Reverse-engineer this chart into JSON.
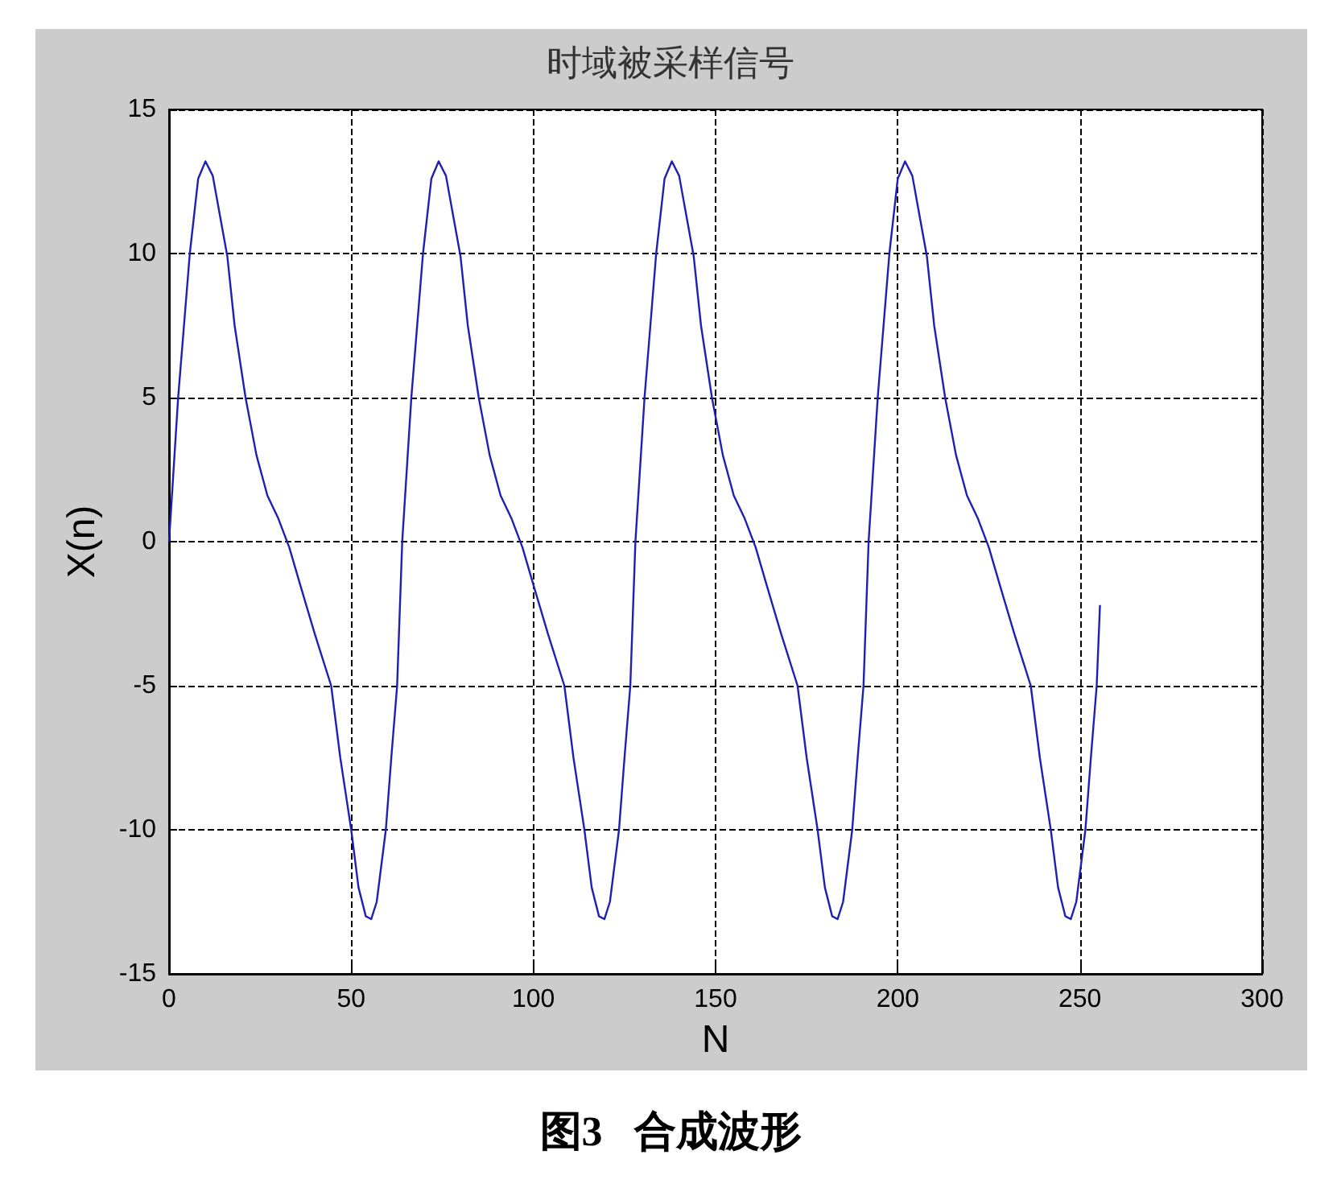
{
  "chart_data": {
    "type": "line",
    "title": "时域被采样信号",
    "xlabel": "N",
    "ylabel": "X(n)",
    "annotations": [
      "图3   合成波形"
    ],
    "x": [
      0,
      2.5,
      5.7,
      8,
      10,
      12,
      14,
      16,
      18,
      21,
      24,
      27,
      30,
      33,
      36,
      40,
      44.5,
      47,
      50,
      52,
      54,
      55.5,
      57,
      59.5,
      61,
      62.6,
      64,
      66.5,
      69.7,
      72,
      74,
      76,
      78,
      80,
      82,
      85,
      88,
      91,
      94,
      97,
      100,
      104,
      108.5,
      111,
      114,
      116,
      118,
      119.5,
      121,
      123.5,
      125,
      126.6,
      128,
      130.5,
      133.7,
      136,
      138,
      140,
      142,
      144,
      146,
      149,
      152,
      155,
      158,
      161,
      164,
      168,
      172.5,
      175,
      178,
      180,
      182,
      183.5,
      185,
      187.5,
      189,
      190.6,
      192,
      194.5,
      197.7,
      200,
      202,
      204,
      206,
      208,
      210,
      213,
      216,
      219,
      222,
      225,
      228,
      232,
      236.5,
      239,
      242,
      244,
      246,
      247.5,
      249,
      251.5,
      253,
      254.6,
      255.5
    ],
    "series": [
      {
        "color": "#1f1fb4",
        "values": [
          0,
          5,
          10,
          12.6,
          13.2,
          12.7,
          11.3,
          9.9,
          7.5,
          5,
          3,
          1.6,
          0.8,
          -0.2,
          -1.5,
          -3.2,
          -5,
          -7.5,
          -10,
          -12,
          -13,
          -13.1,
          -12.5,
          -10,
          -7.5,
          -5,
          0,
          5,
          10,
          12.6,
          13.2,
          12.7,
          11.3,
          9.9,
          7.5,
          5,
          3,
          1.6,
          0.8,
          -0.2,
          -1.5,
          -3.2,
          -5,
          -7.5,
          -10,
          -12,
          -13,
          -13.1,
          -12.5,
          -10,
          -7.5,
          -5,
          0,
          5,
          10,
          12.6,
          13.2,
          12.7,
          11.3,
          9.9,
          7.5,
          5,
          3,
          1.6,
          0.8,
          -0.2,
          -1.5,
          -3.2,
          -5,
          -7.5,
          -10,
          -12,
          -13,
          -13.1,
          -12.5,
          -10,
          -7.5,
          -5,
          0,
          5,
          10,
          12.6,
          13.2,
          12.7,
          11.3,
          9.9,
          7.5,
          5,
          3,
          1.6,
          0.8,
          -0.2,
          -1.5,
          -3.2,
          -5,
          -7.5,
          -10,
          -12,
          -13,
          -13.1,
          -12.5,
          -10,
          -7.5,
          -5,
          -2.2
        ]
      }
    ],
    "xlim": [
      0,
      300
    ],
    "xticks": [
      0,
      50,
      100,
      150,
      200,
      250,
      300
    ],
    "ylim": [
      -15,
      15
    ],
    "yticks": [
      -15,
      -10,
      -5,
      0,
      5,
      10,
      15
    ],
    "grid": true,
    "marker": "none",
    "line_style": "solid"
  }
}
